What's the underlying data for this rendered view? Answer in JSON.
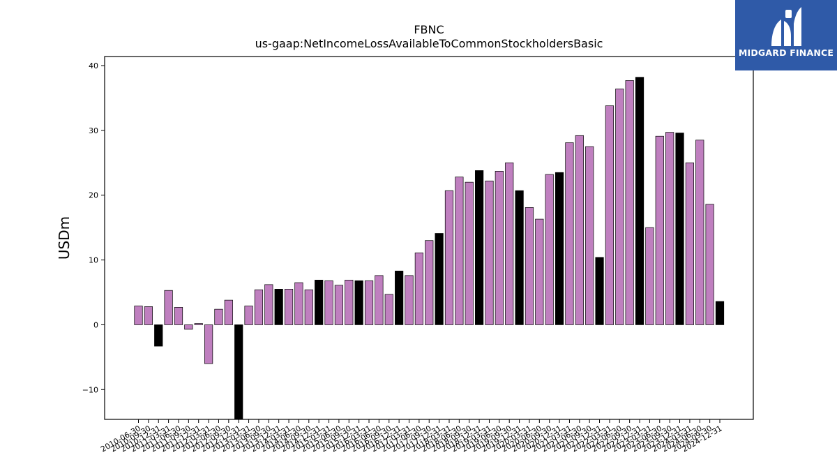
{
  "brand": {
    "name": "MIDGARD FINANCE",
    "color": "#2f5aa8",
    "icon": "mf-monogram-icon"
  },
  "chart_data": {
    "type": "bar",
    "title": "FBNC",
    "subtitle": "us-gaap:NetIncomeLossAvailableToCommonStockholdersBasic",
    "xlabel": "",
    "ylabel": "USDm",
    "ylim": [
      -14.6,
      41.4
    ],
    "yticks": [
      -10,
      0,
      10,
      20,
      30,
      40
    ],
    "grid": false,
    "colors": {
      "quarter": "#bf7fbf",
      "annual": "#000000"
    },
    "categories": [
      "2010-06-30",
      "2010-09-30",
      "2010-12-31",
      "2011-03-31",
      "2011-06-30",
      "2011-09-30",
      "2011-12-31",
      "2012-03-31",
      "2012-06-30",
      "2012-09-30",
      "2012-12-31",
      "2013-03-31",
      "2013-06-30",
      "2013-09-30",
      "2013-12-31",
      "2014-03-31",
      "2014-06-30",
      "2014-09-30",
      "2014-12-31",
      "2015-03-31",
      "2015-06-30",
      "2015-09-30",
      "2015-12-31",
      "2016-03-31",
      "2016-06-30",
      "2016-09-30",
      "2016-12-31",
      "2017-03-31",
      "2017-06-30",
      "2017-09-30",
      "2017-12-31",
      "2018-03-31",
      "2018-06-30",
      "2018-09-30",
      "2018-12-31",
      "2019-03-31",
      "2019-06-30",
      "2019-09-30",
      "2019-12-31",
      "2020-03-31",
      "2020-06-30",
      "2020-09-30",
      "2020-12-31",
      "2021-03-31",
      "2021-06-30",
      "2021-09-30",
      "2021-12-31",
      "2022-03-31",
      "2022-06-30",
      "2022-09-30",
      "2022-12-31",
      "2023-03-31",
      "2023-06-30",
      "2023-09-30",
      "2023-12-31",
      "2024-03-31",
      "2024-06-30",
      "2024-09-30",
      "2024-12-31"
    ],
    "values": [
      2.9,
      2.8,
      -3.3,
      5.3,
      2.7,
      -0.7,
      0.2,
      -6.0,
      2.4,
      3.8,
      -14.6,
      2.9,
      5.4,
      6.2,
      5.5,
      5.5,
      6.5,
      5.4,
      6.9,
      6.8,
      6.1,
      6.9,
      6.8,
      6.8,
      7.6,
      4.7,
      8.3,
      7.6,
      11.1,
      13.0,
      14.1,
      20.7,
      22.8,
      22.0,
      23.8,
      22.2,
      23.7,
      25.0,
      20.7,
      18.1,
      16.3,
      23.2,
      23.5,
      28.1,
      29.2,
      27.5,
      10.4,
      33.8,
      36.4,
      37.7,
      38.2,
      15.0,
      29.1,
      29.7,
      29.6,
      25.0,
      28.5,
      18.6,
      3.6
    ],
    "annual": [
      false,
      false,
      true,
      false,
      false,
      false,
      false,
      false,
      false,
      false,
      true,
      false,
      false,
      false,
      true,
      false,
      false,
      false,
      true,
      false,
      false,
      false,
      true,
      false,
      false,
      false,
      true,
      false,
      false,
      false,
      true,
      false,
      false,
      false,
      true,
      false,
      false,
      false,
      true,
      false,
      false,
      false,
      true,
      false,
      false,
      false,
      true,
      false,
      false,
      false,
      true,
      false,
      false,
      false,
      true,
      false,
      false,
      false,
      true
    ]
  }
}
